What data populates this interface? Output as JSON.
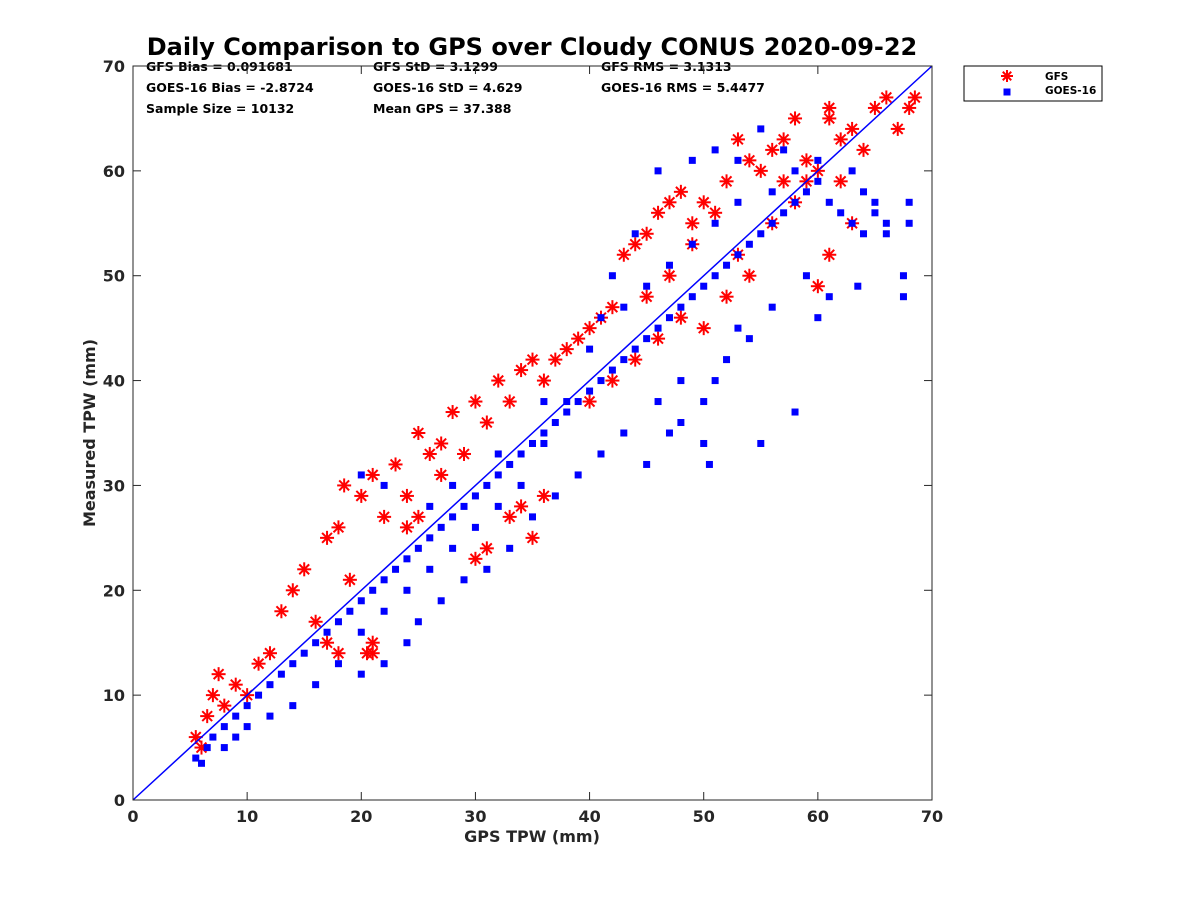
{
  "chart_data": {
    "type": "scatter",
    "title": "Daily Comparison to GPS over Cloudy CONUS 2020-09-22",
    "xlabel": "GPS TPW (mm)",
    "ylabel": "Measured TPW (mm)",
    "xlim": [
      0,
      70
    ],
    "ylim": [
      0,
      70
    ],
    "xticks": [
      "0",
      "10",
      "20",
      "30",
      "40",
      "50",
      "60",
      "70"
    ],
    "yticks": [
      "0",
      "10",
      "20",
      "30",
      "40",
      "50",
      "60",
      "70"
    ],
    "grid": false,
    "legend_position": "outside-top-right",
    "reference_line": {
      "x": [
        0,
        70
      ],
      "y": [
        0,
        70
      ],
      "color": "#0000ff"
    },
    "stats": [
      [
        "GFS Bias = 0.091681",
        "GFS StD = 3.1299",
        "GFS RMS = 3.1313"
      ],
      [
        "GOES-16 Bias = -2.8724",
        "GOES-16 StD = 4.629",
        "GOES-16 RMS = 5.4477"
      ],
      [
        "Sample Size = 10132",
        "Mean GPS = 37.388"
      ]
    ],
    "series": [
      {
        "name": "GFS",
        "marker": "asterisk",
        "color": "#ff0000",
        "points": [
          [
            5.5,
            6
          ],
          [
            6,
            5
          ],
          [
            6.5,
            8
          ],
          [
            7,
            10
          ],
          [
            7.5,
            12
          ],
          [
            8,
            9
          ],
          [
            9,
            11
          ],
          [
            10,
            10
          ],
          [
            11,
            13
          ],
          [
            12,
            14
          ],
          [
            13,
            18
          ],
          [
            14,
            20
          ],
          [
            15,
            22
          ],
          [
            16,
            17
          ],
          [
            17,
            25
          ],
          [
            18,
            26
          ],
          [
            18.5,
            30
          ],
          [
            19,
            21
          ],
          [
            20,
            29
          ],
          [
            21,
            31
          ],
          [
            20.5,
            14
          ],
          [
            21,
            15
          ],
          [
            22,
            27
          ],
          [
            23,
            32
          ],
          [
            24,
            29
          ],
          [
            25,
            35
          ],
          [
            26,
            33
          ],
          [
            27,
            34
          ],
          [
            28,
            37
          ],
          [
            29,
            33
          ],
          [
            30,
            38
          ],
          [
            31,
            36
          ],
          [
            32,
            40
          ],
          [
            33,
            38
          ],
          [
            34,
            41
          ],
          [
            35,
            42
          ],
          [
            36,
            40
          ],
          [
            37,
            42
          ],
          [
            38,
            43
          ],
          [
            39,
            44
          ],
          [
            40,
            45
          ],
          [
            41,
            46
          ],
          [
            42,
            47
          ],
          [
            43,
            52
          ],
          [
            44,
            53
          ],
          [
            45,
            54
          ],
          [
            46,
            56
          ],
          [
            47,
            57
          ],
          [
            48,
            58
          ],
          [
            49,
            55
          ],
          [
            50,
            57
          ],
          [
            51,
            56
          ],
          [
            52,
            59
          ],
          [
            53,
            63
          ],
          [
            54,
            61
          ],
          [
            55,
            60
          ],
          [
            56,
            62
          ],
          [
            57,
            63
          ],
          [
            58,
            65
          ],
          [
            59,
            61
          ],
          [
            60,
            60
          ],
          [
            61,
            66
          ],
          [
            61,
            65
          ],
          [
            62,
            63
          ],
          [
            63,
            64
          ],
          [
            64,
            62
          ],
          [
            65,
            66
          ],
          [
            66,
            67
          ],
          [
            67,
            64
          ],
          [
            68,
            66
          ],
          [
            68.5,
            67
          ],
          [
            62,
            59
          ],
          [
            60,
            49
          ],
          [
            61,
            52
          ],
          [
            63,
            55
          ],
          [
            33,
            27
          ],
          [
            35,
            25
          ],
          [
            30,
            23
          ],
          [
            31,
            24
          ],
          [
            34,
            28
          ],
          [
            36,
            29
          ],
          [
            17,
            15
          ],
          [
            18,
            14
          ],
          [
            21,
            14
          ],
          [
            25,
            27
          ],
          [
            24,
            26
          ],
          [
            27,
            31
          ],
          [
            40,
            38
          ],
          [
            42,
            40
          ],
          [
            44,
            42
          ],
          [
            46,
            44
          ],
          [
            48,
            46
          ],
          [
            50,
            45
          ],
          [
            52,
            48
          ],
          [
            54,
            50
          ],
          [
            53,
            52
          ],
          [
            56,
            55
          ],
          [
            58,
            57
          ],
          [
            59,
            59
          ],
          [
            57,
            59
          ],
          [
            49,
            53
          ],
          [
            47,
            50
          ],
          [
            45,
            48
          ]
        ]
      },
      {
        "name": "GOES-16",
        "marker": "square",
        "color": "#0000ff",
        "points": [
          [
            5.5,
            4
          ],
          [
            6,
            3.5
          ],
          [
            6.5,
            5
          ],
          [
            7,
            6
          ],
          [
            8,
            7
          ],
          [
            9,
            8
          ],
          [
            10,
            9
          ],
          [
            11,
            10
          ],
          [
            12,
            11
          ],
          [
            13,
            12
          ],
          [
            14,
            13
          ],
          [
            15,
            14
          ],
          [
            16,
            15
          ],
          [
            17,
            16
          ],
          [
            18,
            17
          ],
          [
            19,
            18
          ],
          [
            20,
            19
          ],
          [
            21,
            20
          ],
          [
            22,
            21
          ],
          [
            23,
            22
          ],
          [
            24,
            23
          ],
          [
            25,
            24
          ],
          [
            26,
            25
          ],
          [
            27,
            26
          ],
          [
            28,
            27
          ],
          [
            29,
            28
          ],
          [
            30,
            29
          ],
          [
            31,
            30
          ],
          [
            32,
            31
          ],
          [
            33,
            32
          ],
          [
            34,
            33
          ],
          [
            35,
            34
          ],
          [
            36,
            35
          ],
          [
            37,
            36
          ],
          [
            38,
            37
          ],
          [
            39,
            38
          ],
          [
            40,
            39
          ],
          [
            41,
            40
          ],
          [
            42,
            41
          ],
          [
            43,
            42
          ],
          [
            44,
            43
          ],
          [
            45,
            44
          ],
          [
            46,
            45
          ],
          [
            47,
            46
          ],
          [
            48,
            47
          ],
          [
            49,
            48
          ],
          [
            50,
            49
          ],
          [
            51,
            50
          ],
          [
            52,
            51
          ],
          [
            53,
            52
          ],
          [
            54,
            53
          ],
          [
            55,
            54
          ],
          [
            56,
            55
          ],
          [
            57,
            56
          ],
          [
            58,
            57
          ],
          [
            59,
            58
          ],
          [
            60,
            59
          ],
          [
            61,
            57
          ],
          [
            62,
            56
          ],
          [
            63,
            55
          ],
          [
            64,
            54
          ],
          [
            65,
            56
          ],
          [
            66,
            55
          ],
          [
            68,
            57
          ],
          [
            68,
            55
          ],
          [
            67.5,
            50
          ],
          [
            67.5,
            48
          ],
          [
            63.5,
            49
          ],
          [
            58,
            37
          ],
          [
            55,
            34
          ],
          [
            50.5,
            32
          ],
          [
            47,
            35
          ],
          [
            50,
            34
          ],
          [
            45,
            32
          ],
          [
            48,
            40
          ],
          [
            50,
            38
          ],
          [
            52,
            42
          ],
          [
            54,
            44
          ],
          [
            46,
            60
          ],
          [
            49,
            61
          ],
          [
            51,
            62
          ],
          [
            53,
            61
          ],
          [
            55,
            64
          ],
          [
            57,
            62
          ],
          [
            44,
            54
          ],
          [
            42,
            50
          ],
          [
            40,
            43
          ],
          [
            38,
            38
          ],
          [
            36,
            34
          ],
          [
            34,
            30
          ],
          [
            32,
            28
          ],
          [
            30,
            26
          ],
          [
            28,
            24
          ],
          [
            26,
            22
          ],
          [
            24,
            20
          ],
          [
            22,
            18
          ],
          [
            20,
            16
          ],
          [
            18,
            13
          ],
          [
            16,
            11
          ],
          [
            14,
            9
          ],
          [
            12,
            8
          ],
          [
            10,
            7
          ],
          [
            9,
            6
          ],
          [
            8,
            5
          ],
          [
            20,
            12
          ],
          [
            22,
            13
          ],
          [
            24,
            15
          ],
          [
            25,
            17
          ],
          [
            27,
            19
          ],
          [
            29,
            21
          ],
          [
            31,
            22
          ],
          [
            33,
            24
          ],
          [
            35,
            27
          ],
          [
            37,
            29
          ],
          [
            39,
            31
          ],
          [
            41,
            33
          ],
          [
            43,
            35
          ],
          [
            46,
            38
          ],
          [
            48,
            36
          ],
          [
            51,
            40
          ],
          [
            53,
            45
          ],
          [
            56,
            47
          ],
          [
            59,
            50
          ],
          [
            60,
            46
          ],
          [
            61,
            48
          ],
          [
            20,
            31
          ],
          [
            22,
            30
          ],
          [
            26,
            28
          ],
          [
            28,
            30
          ],
          [
            32,
            33
          ],
          [
            36,
            38
          ],
          [
            41,
            46
          ],
          [
            43,
            47
          ],
          [
            45,
            49
          ],
          [
            47,
            51
          ],
          [
            49,
            53
          ],
          [
            51,
            55
          ],
          [
            53,
            57
          ],
          [
            56,
            58
          ],
          [
            58,
            60
          ],
          [
            60,
            61
          ],
          [
            63,
            60
          ],
          [
            64,
            58
          ],
          [
            65,
            57
          ],
          [
            66,
            54
          ]
        ]
      }
    ]
  }
}
